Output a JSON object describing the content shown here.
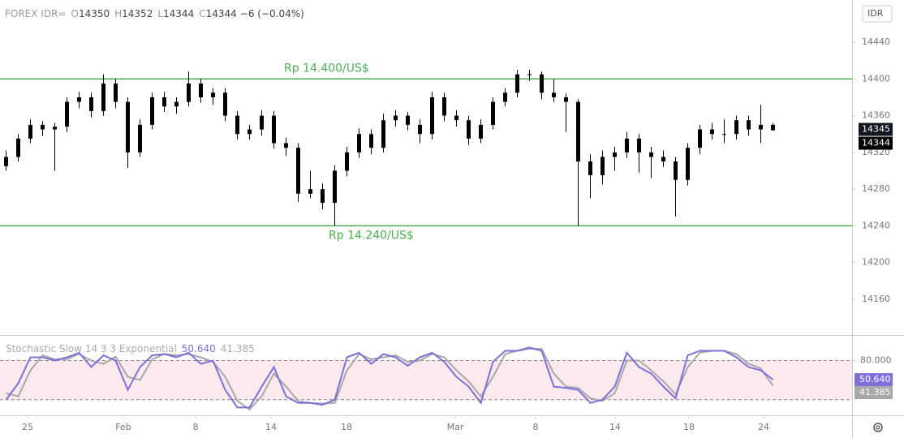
{
  "header": {
    "symbol": "FOREX IDR=",
    "items": [
      {
        "key": "O",
        "value": 14350
      },
      {
        "key": "H",
        "value": 14352
      },
      {
        "key": "L",
        "value": 14344
      },
      {
        "key": "C",
        "value": 14344
      }
    ],
    "change": "−6 (−0.04%)",
    "currency": "IDR"
  },
  "chart_data": [
    {
      "type": "candlestick",
      "color": "#000000",
      "open": [
        14305,
        14315,
        14335,
        14350,
        14345,
        14348,
        14375,
        14380,
        14365,
        14395,
        14375,
        14320,
        14350,
        14380,
        14370,
        14375,
        14395,
        14380,
        14385,
        14360,
        14340,
        14345,
        14360,
        14330,
        14325,
        14275,
        14280,
        14265,
        14300,
        14320,
        14340,
        14325,
        14355,
        14360,
        14350,
        14340,
        14380,
        14360,
        14355,
        14335,
        14350,
        14375,
        14385,
        14405,
        14405,
        14385,
        14380,
        14375,
        14310,
        14295,
        14315,
        14320,
        14335,
        14320,
        14315,
        14310,
        14290,
        14325,
        14345,
        14340,
        14340,
        14355,
        14345,
        14350
      ],
      "high": [
        14322,
        14340,
        14356,
        14354,
        14352,
        14380,
        14386,
        14385,
        14405,
        14400,
        14380,
        14356,
        14385,
        14386,
        14380,
        14408,
        14400,
        14390,
        14390,
        14365,
        14350,
        14366,
        14365,
        14336,
        14330,
        14300,
        14286,
        14306,
        14326,
        14346,
        14345,
        14362,
        14366,
        14364,
        14356,
        14386,
        14385,
        14366,
        14360,
        14356,
        14380,
        14390,
        14410,
        14410,
        14408,
        14400,
        14384,
        14378,
        14318,
        14322,
        14326,
        14342,
        14340,
        14326,
        14322,
        14315,
        14330,
        14350,
        14352,
        14356,
        14360,
        14360,
        14372,
        14352
      ],
      "low": [
        14300,
        14310,
        14330,
        14338,
        14300,
        14342,
        14368,
        14358,
        14360,
        14368,
        14303,
        14315,
        14345,
        14364,
        14362,
        14370,
        14374,
        14372,
        14354,
        14334,
        14334,
        14338,
        14324,
        14316,
        14266,
        14270,
        14258,
        14240,
        14294,
        14314,
        14318,
        14320,
        14348,
        14344,
        14330,
        14334,
        14354,
        14348,
        14328,
        14330,
        14345,
        14370,
        14380,
        14398,
        14378,
        14375,
        14342,
        14240,
        14270,
        14285,
        14300,
        14314,
        14298,
        14292,
        14304,
        14250,
        14284,
        14318,
        14334,
        14330,
        14334,
        14338,
        14330,
        14344
      ],
      "close": [
        14315,
        14335,
        14350,
        14345,
        14348,
        14375,
        14380,
        14365,
        14395,
        14375,
        14320,
        14350,
        14380,
        14370,
        14375,
        14395,
        14380,
        14385,
        14360,
        14340,
        14345,
        14360,
        14330,
        14325,
        14275,
        14280,
        14265,
        14300,
        14320,
        14340,
        14325,
        14355,
        14360,
        14350,
        14340,
        14380,
        14360,
        14355,
        14335,
        14350,
        14375,
        14385,
        14405,
        14405,
        14385,
        14380,
        14375,
        14310,
        14295,
        14315,
        14320,
        14335,
        14320,
        14315,
        14310,
        14290,
        14325,
        14345,
        14340,
        14340,
        14355,
        14345,
        14350,
        14344
      ],
      "xlim": [
        -0.5,
        69.5
      ],
      "ylim": [
        14121,
        14486
      ],
      "yticks": [
        14160,
        14200,
        14240,
        14280,
        14320,
        14360,
        14400,
        14440
      ],
      "hlines": [
        {
          "value": 14400,
          "label": "Rp 14.400/US$",
          "color": "#4caf50"
        },
        {
          "value": 14240,
          "label": "Rp 14.240/US$",
          "color": "#4caf50"
        }
      ],
      "price_markers": [
        14345,
        14344
      ]
    },
    {
      "type": "line",
      "title": "Stochastic Slow 14 3 3 Exponential",
      "series": [
        {
          "name": "41.385",
          "color": "#a8a8a8",
          "values": [
            30,
            25,
            65,
            88,
            82,
            82,
            90,
            80,
            75,
            86,
            55,
            50,
            82,
            90,
            88,
            90,
            85,
            78,
            55,
            18,
            5,
            25,
            60,
            40,
            18,
            15,
            14,
            15,
            65,
            90,
            82,
            85,
            88,
            78,
            80,
            90,
            85,
            65,
            48,
            25,
            55,
            90,
            95,
            98,
            98,
            60,
            40,
            38,
            22,
            18,
            30,
            80,
            80,
            65,
            48,
            28,
            70,
            92,
            95,
            95,
            90,
            75,
            68,
            41.385
          ],
          "value_labels": "41.385"
        },
        {
          "name": "50.640",
          "color": "#7e6fd9",
          "values": [
            20,
            45,
            85,
            85,
            80,
            85,
            92,
            70,
            88,
            80,
            35,
            70,
            88,
            90,
            85,
            92,
            75,
            80,
            35,
            8,
            8,
            40,
            70,
            25,
            15,
            15,
            12,
            20,
            85,
            92,
            75,
            90,
            85,
            72,
            85,
            92,
            78,
            55,
            40,
            15,
            78,
            95,
            95,
            100,
            95,
            40,
            38,
            35,
            15,
            20,
            40,
            92,
            70,
            60,
            40,
            22,
            88,
            95,
            95,
            95,
            85,
            70,
            65,
            50.64
          ],
          "value_labels": "50.640"
        }
      ],
      "xlim": [
        -0.5,
        69.5
      ],
      "ylim": [
        -4,
        118
      ],
      "band": [
        20,
        80
      ],
      "band_color": "#fbe9ee",
      "yticks": [
        {
          "value": 80,
          "label": "80.000"
        }
      ],
      "xticks": [
        {
          "value": 1.77,
          "label": "25"
        },
        {
          "value": 9.63,
          "label": "Feb"
        },
        {
          "value": 15.57,
          "label": "8"
        },
        {
          "value": 21.77,
          "label": "14"
        },
        {
          "value": 27.97,
          "label": "18"
        },
        {
          "value": 36.9,
          "label": "Mar"
        },
        {
          "value": 43.5,
          "label": "8"
        },
        {
          "value": 50.03,
          "label": "14"
        },
        {
          "value": 56.1,
          "label": "18"
        },
        {
          "value": 62.23,
          "label": "24"
        }
      ]
    }
  ]
}
